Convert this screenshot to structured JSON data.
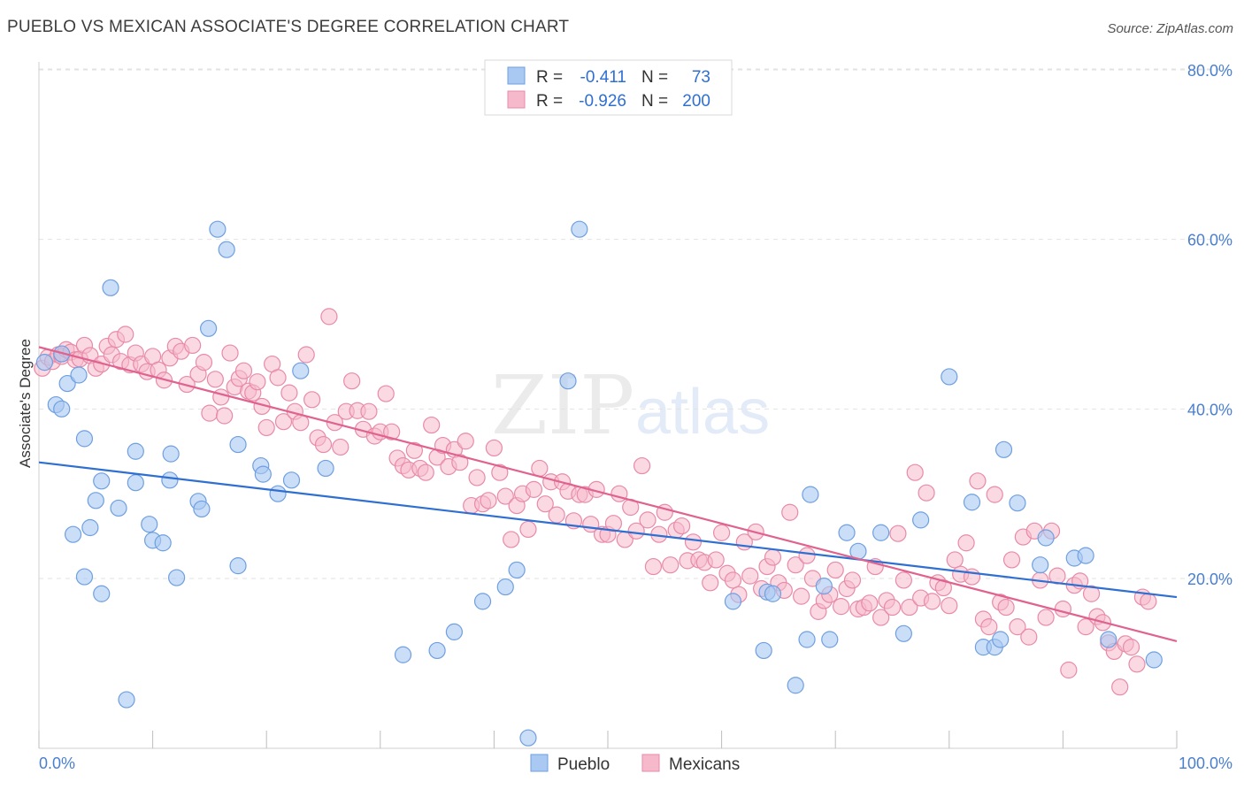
{
  "title": "PUEBLO VS MEXICAN ASSOCIATE'S DEGREE CORRELATION CHART",
  "source": "Source: ZipAtlas.com",
  "watermark": {
    "zip": "ZIP",
    "atlas": "atlas"
  },
  "colors": {
    "pueblo_fill": "#a9c8f2",
    "pueblo_stroke": "#6e9fe0",
    "pueblo_line": "#2f6fd1",
    "mexican_fill": "#f6b9cc",
    "mexican_stroke": "#e88aa8",
    "mexican_line": "#e0628f",
    "tick_color": "#4a7fd0"
  },
  "legend": {
    "rows": [
      {
        "r_label": "R =",
        "r_value": "-0.411",
        "n_label": "N =",
        "n_value": "73"
      },
      {
        "r_label": "R =",
        "r_value": "-0.926",
        "n_label": "N =",
        "n_value": "200"
      }
    ]
  },
  "bottom_legend": [
    "Pueblo",
    "Mexicans"
  ],
  "chart_data": {
    "type": "scatter",
    "title": "PUEBLO VS MEXICAN ASSOCIATE'S DEGREE CORRELATION CHART",
    "xlabel": "",
    "ylabel": "Associate's Degree",
    "xlim": [
      0,
      100
    ],
    "ylim": [
      0,
      82
    ],
    "x_tick_labels": [
      "0.0%",
      "100.0%"
    ],
    "y_ticks": [
      20,
      40,
      60,
      80
    ],
    "y_tick_labels": [
      "20.0%",
      "40.0%",
      "60.0%",
      "80.0%"
    ],
    "grid": true,
    "legend_position": "top-center",
    "series": [
      {
        "name": "Pueblo",
        "r": -0.411,
        "n": 73,
        "trend": {
          "x": [
            0,
            100
          ],
          "y": [
            33.7,
            17.8
          ]
        },
        "points": [
          [
            0.5,
            45.5
          ],
          [
            1.5,
            40.5
          ],
          [
            2,
            40
          ],
          [
            2,
            46.5
          ],
          [
            2.5,
            43
          ],
          [
            3,
            25.2
          ],
          [
            3.5,
            44
          ],
          [
            4,
            36.5
          ],
          [
            4,
            20.2
          ],
          [
            4.5,
            26
          ],
          [
            5,
            29.2
          ],
          [
            5.5,
            31.5
          ],
          [
            5.5,
            18.2
          ],
          [
            6.3,
            54.3
          ],
          [
            7,
            28.3
          ],
          [
            7.7,
            5.7
          ],
          [
            8.5,
            35
          ],
          [
            8.5,
            31.3
          ],
          [
            9.7,
            26.4
          ],
          [
            10,
            24.5
          ],
          [
            10.9,
            24.2
          ],
          [
            11.5,
            31.6
          ],
          [
            11.6,
            34.7
          ],
          [
            12.1,
            20.1
          ],
          [
            14,
            29.1
          ],
          [
            14.3,
            28.2
          ],
          [
            14.9,
            49.5
          ],
          [
            15.7,
            61.2
          ],
          [
            16.5,
            58.8
          ],
          [
            17.5,
            35.8
          ],
          [
            17.5,
            21.5
          ],
          [
            19.5,
            33.3
          ],
          [
            19.7,
            32.3
          ],
          [
            21,
            30
          ],
          [
            22.2,
            31.6
          ],
          [
            23,
            44.5
          ],
          [
            25.2,
            33
          ],
          [
            32,
            11
          ],
          [
            35,
            11.5
          ],
          [
            36.5,
            13.7
          ],
          [
            39,
            17.3
          ],
          [
            41,
            19
          ],
          [
            42,
            21
          ],
          [
            43,
            1.2
          ],
          [
            46.5,
            43.3
          ],
          [
            47.5,
            61.2
          ],
          [
            61,
            17.3
          ],
          [
            63.7,
            11.5
          ],
          [
            64,
            18.4
          ],
          [
            64.5,
            18.2
          ],
          [
            66.5,
            7.4
          ],
          [
            67.5,
            12.8
          ],
          [
            67.8,
            29.9
          ],
          [
            69,
            19.1
          ],
          [
            69.5,
            12.8
          ],
          [
            71,
            25.4
          ],
          [
            72,
            23.2
          ],
          [
            74,
            25.4
          ],
          [
            76,
            13.5
          ],
          [
            77.5,
            26.9
          ],
          [
            80,
            43.8
          ],
          [
            82,
            29
          ],
          [
            83,
            11.9
          ],
          [
            84,
            11.9
          ],
          [
            84.5,
            12.8
          ],
          [
            84.8,
            35.2
          ],
          [
            86,
            28.9
          ],
          [
            88,
            21.6
          ],
          [
            88.5,
            24.8
          ],
          [
            91,
            22.4
          ],
          [
            92,
            22.7
          ],
          [
            94,
            12.8
          ],
          [
            98,
            10.4
          ]
        ]
      },
      {
        "name": "Mexicans",
        "r": -0.926,
        "n": 200,
        "trend": {
          "x": [
            0,
            100
          ],
          "y": [
            47.3,
            12.6
          ]
        },
        "points": [
          [
            0.3,
            44.8
          ],
          [
            0.8,
            46.1
          ],
          [
            1.2,
            45.6
          ],
          [
            1.7,
            46.4
          ],
          [
            2,
            46.2
          ],
          [
            2.4,
            47
          ],
          [
            2.8,
            46.7
          ],
          [
            3.2,
            45.8
          ],
          [
            3.6,
            45.9
          ],
          [
            4,
            47.5
          ],
          [
            4.5,
            46.3
          ],
          [
            5,
            44.8
          ],
          [
            5.5,
            45.3
          ],
          [
            6,
            47.4
          ],
          [
            6.4,
            46.4
          ],
          [
            6.8,
            48.2
          ],
          [
            7.2,
            45.6
          ],
          [
            7.6,
            48.8
          ],
          [
            8,
            45.2
          ],
          [
            8.5,
            46.6
          ],
          [
            9,
            45.3
          ],
          [
            9.5,
            44.4
          ],
          [
            10,
            46.2
          ],
          [
            10.5,
            44.6
          ],
          [
            11,
            43.4
          ],
          [
            11.5,
            46
          ],
          [
            12,
            47.4
          ],
          [
            12.5,
            46.8
          ],
          [
            13,
            42.9
          ],
          [
            13.5,
            47.5
          ],
          [
            14,
            44.1
          ],
          [
            14.5,
            45.5
          ],
          [
            15,
            39.5
          ],
          [
            15.5,
            43.5
          ],
          [
            16,
            41.4
          ],
          [
            16.3,
            39.2
          ],
          [
            16.8,
            46.6
          ],
          [
            17.2,
            42.6
          ],
          [
            17.6,
            43.6
          ],
          [
            18,
            44.5
          ],
          [
            18.4,
            42.1
          ],
          [
            18.8,
            41.9
          ],
          [
            19.2,
            43.2
          ],
          [
            19.6,
            40.3
          ],
          [
            20,
            37.8
          ],
          [
            20.5,
            45.3
          ],
          [
            21,
            43.7
          ],
          [
            21.5,
            38.5
          ],
          [
            22,
            41.9
          ],
          [
            22.5,
            39.7
          ],
          [
            23,
            38.4
          ],
          [
            23.5,
            46.4
          ],
          [
            24,
            41.1
          ],
          [
            24.5,
            36.6
          ],
          [
            25,
            35.8
          ],
          [
            25.5,
            50.9
          ],
          [
            26,
            38.4
          ],
          [
            26.5,
            35.5
          ],
          [
            27,
            39.7
          ],
          [
            27.5,
            43.3
          ],
          [
            28,
            39.8
          ],
          [
            28.5,
            37.6
          ],
          [
            29,
            39.7
          ],
          [
            29.5,
            36.8
          ],
          [
            30,
            37.3
          ],
          [
            30.5,
            41.8
          ],
          [
            31,
            37.3
          ],
          [
            31.5,
            34.2
          ],
          [
            32,
            33.3
          ],
          [
            32.5,
            32.8
          ],
          [
            33,
            35.1
          ],
          [
            33.5,
            33
          ],
          [
            34,
            32.5
          ],
          [
            34.5,
            38.1
          ],
          [
            35,
            34.3
          ],
          [
            35.5,
            35.7
          ],
          [
            36,
            33.2
          ],
          [
            36.5,
            35.2
          ],
          [
            37,
            33.7
          ],
          [
            37.5,
            36.2
          ],
          [
            38,
            28.6
          ],
          [
            38.5,
            31.9
          ],
          [
            39,
            28.8
          ],
          [
            39.5,
            29.2
          ],
          [
            40,
            35.4
          ],
          [
            40.5,
            32.5
          ],
          [
            41,
            29.7
          ],
          [
            41.5,
            24.6
          ],
          [
            42,
            28.6
          ],
          [
            42.5,
            30
          ],
          [
            43,
            25.8
          ],
          [
            43.5,
            30.5
          ],
          [
            44,
            33
          ],
          [
            44.5,
            28.8
          ],
          [
            45,
            31.4
          ],
          [
            45.5,
            27.5
          ],
          [
            46,
            31.4
          ],
          [
            46.5,
            30.3
          ],
          [
            47,
            26.8
          ],
          [
            47.5,
            29.9
          ],
          [
            48,
            29.9
          ],
          [
            48.5,
            26.4
          ],
          [
            49,
            30.5
          ],
          [
            49.5,
            25.2
          ],
          [
            50,
            25.2
          ],
          [
            50.5,
            26.5
          ],
          [
            51,
            30
          ],
          [
            51.5,
            24.6
          ],
          [
            52,
            28.4
          ],
          [
            52.5,
            25.6
          ],
          [
            53,
            33.3
          ],
          [
            53.5,
            26.9
          ],
          [
            54,
            21.4
          ],
          [
            54.5,
            25.2
          ],
          [
            55,
            27.8
          ],
          [
            55.5,
            21.6
          ],
          [
            56,
            25.7
          ],
          [
            56.5,
            26.2
          ],
          [
            57,
            22.1
          ],
          [
            57.5,
            24.3
          ],
          [
            58,
            22.2
          ],
          [
            58.5,
            21.9
          ],
          [
            59,
            19.5
          ],
          [
            59.5,
            22.2
          ],
          [
            60,
            25.4
          ],
          [
            60.5,
            20.6
          ],
          [
            61,
            19.8
          ],
          [
            61.5,
            18.1
          ],
          [
            62,
            24.3
          ],
          [
            62.5,
            20.3
          ],
          [
            63,
            25.5
          ],
          [
            63.5,
            18.8
          ],
          [
            64,
            21.4
          ],
          [
            64.5,
            22.5
          ],
          [
            65,
            19.5
          ],
          [
            65.5,
            18.6
          ],
          [
            66,
            27.8
          ],
          [
            66.5,
            21.6
          ],
          [
            67,
            17.9
          ],
          [
            67.5,
            22.7
          ],
          [
            68,
            20
          ],
          [
            68.5,
            16.1
          ],
          [
            69,
            17.4
          ],
          [
            69.5,
            18.1
          ],
          [
            70,
            21
          ],
          [
            70.5,
            16.7
          ],
          [
            71,
            18.8
          ],
          [
            71.5,
            19.8
          ],
          [
            72,
            16.4
          ],
          [
            72.5,
            16.6
          ],
          [
            73,
            17.1
          ],
          [
            73.5,
            21.4
          ],
          [
            74,
            15.4
          ],
          [
            74.5,
            17.4
          ],
          [
            75,
            16.6
          ],
          [
            75.5,
            25.3
          ],
          [
            76,
            19.8
          ],
          [
            76.5,
            16.6
          ],
          [
            77,
            32.5
          ],
          [
            77.5,
            17.7
          ],
          [
            78,
            30.1
          ],
          [
            78.5,
            17.3
          ],
          [
            79,
            19.5
          ],
          [
            79.5,
            18.9
          ],
          [
            80,
            16.8
          ],
          [
            80.5,
            22.2
          ],
          [
            81,
            20.5
          ],
          [
            81.5,
            24.2
          ],
          [
            82,
            20.2
          ],
          [
            82.5,
            31.5
          ],
          [
            83,
            15.2
          ],
          [
            83.5,
            14.3
          ],
          [
            84,
            29.9
          ],
          [
            84.5,
            17.2
          ],
          [
            85,
            16.6
          ],
          [
            85.5,
            22.2
          ],
          [
            86,
            14.3
          ],
          [
            86.5,
            24.9
          ],
          [
            87,
            13.1
          ],
          [
            87.5,
            25.6
          ],
          [
            88,
            19.8
          ],
          [
            88.5,
            15.4
          ],
          [
            89,
            25.6
          ],
          [
            89.5,
            20.3
          ],
          [
            90,
            16.4
          ],
          [
            90.5,
            9.2
          ],
          [
            91,
            19.2
          ],
          [
            91.5,
            19.7
          ],
          [
            92,
            14.3
          ],
          [
            92.5,
            18.2
          ],
          [
            93,
            15.5
          ],
          [
            93.5,
            14.8
          ],
          [
            94,
            12.4
          ],
          [
            94.5,
            11.4
          ],
          [
            95,
            7.2
          ],
          [
            95.5,
            12.3
          ],
          [
            96,
            11.9
          ],
          [
            96.5,
            9.9
          ],
          [
            97,
            17.8
          ],
          [
            97.5,
            17.3
          ]
        ]
      }
    ]
  }
}
